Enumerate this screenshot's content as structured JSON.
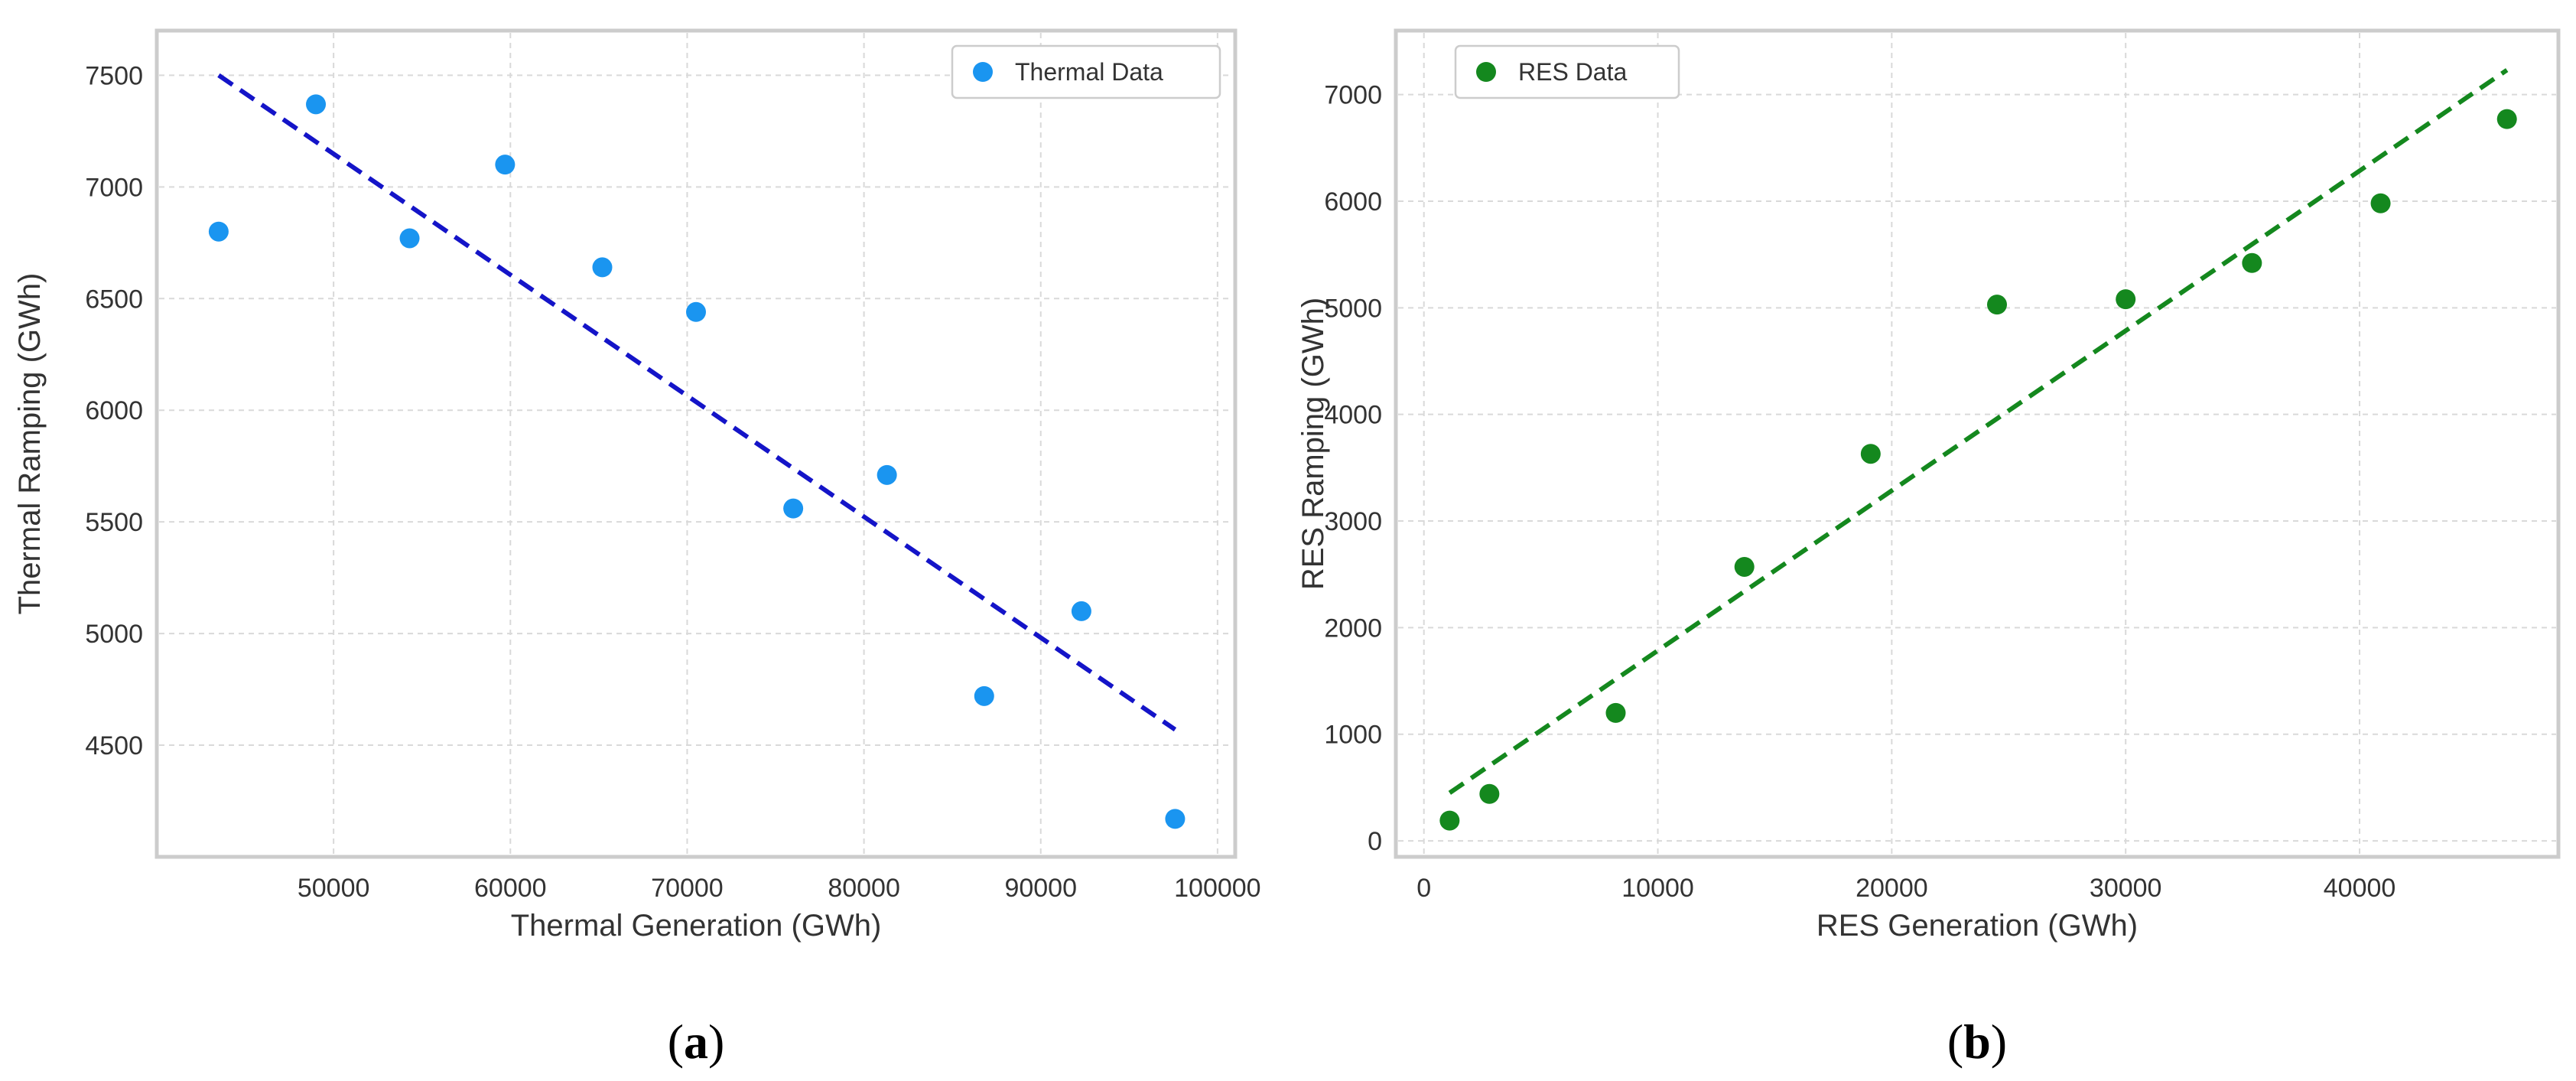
{
  "chart_data": [
    {
      "type": "scatter",
      "panel_label": {
        "open": "(",
        "letter": "a",
        "close": ")"
      },
      "xlabel": "Thermal Generation (GWh)",
      "ylabel": "Thermal Ramping (GWh)",
      "xlim": [
        40000,
        101000
      ],
      "ylim": [
        4000,
        7700
      ],
      "xticks": [
        50000,
        60000,
        70000,
        80000,
        90000,
        100000
      ],
      "yticks": [
        4500,
        5000,
        5500,
        6000,
        6500,
        7000,
        7500
      ],
      "grid": true,
      "legend_position": "top-right",
      "series": [
        {
          "name": "Thermal Data",
          "color": "#1a95f0",
          "x": [
            43500,
            49000,
            54300,
            59700,
            65200,
            70500,
            76000,
            81300,
            86800,
            92300,
            97600
          ],
          "y": [
            6800,
            7370,
            6770,
            7100,
            6640,
            6440,
            5560,
            5710,
            4720,
            5100,
            4170
          ]
        }
      ],
      "trend_line": {
        "color": "#1414c8",
        "style": "dashed",
        "x": [
          43500,
          97600
        ],
        "y": [
          7500,
          4570
        ]
      }
    },
    {
      "type": "scatter",
      "panel_label": {
        "open": "(",
        "letter": "b",
        "close": ")"
      },
      "xlabel": "RES Generation (GWh)",
      "ylabel": "RES Ramping (GWh)",
      "xlim": [
        -1200,
        48500
      ],
      "ylim": [
        -150,
        7600
      ],
      "xticks": [
        0,
        10000,
        20000,
        30000,
        40000
      ],
      "yticks": [
        0,
        1000,
        2000,
        3000,
        4000,
        5000,
        6000,
        7000
      ],
      "grid": true,
      "legend_position": "top-left",
      "series": [
        {
          "name": "RES Data",
          "color": "#14881e",
          "x": [
            1100,
            2800,
            8200,
            13700,
            19100,
            24500,
            30000,
            35400,
            40900,
            46300
          ],
          "y": [
            190,
            440,
            1200,
            2570,
            3630,
            5030,
            5080,
            5420,
            5980,
            6770
          ]
        }
      ],
      "trend_line": {
        "color": "#14881e",
        "style": "dashed",
        "x": [
          1100,
          46300
        ],
        "y": [
          450,
          7230
        ]
      }
    }
  ]
}
